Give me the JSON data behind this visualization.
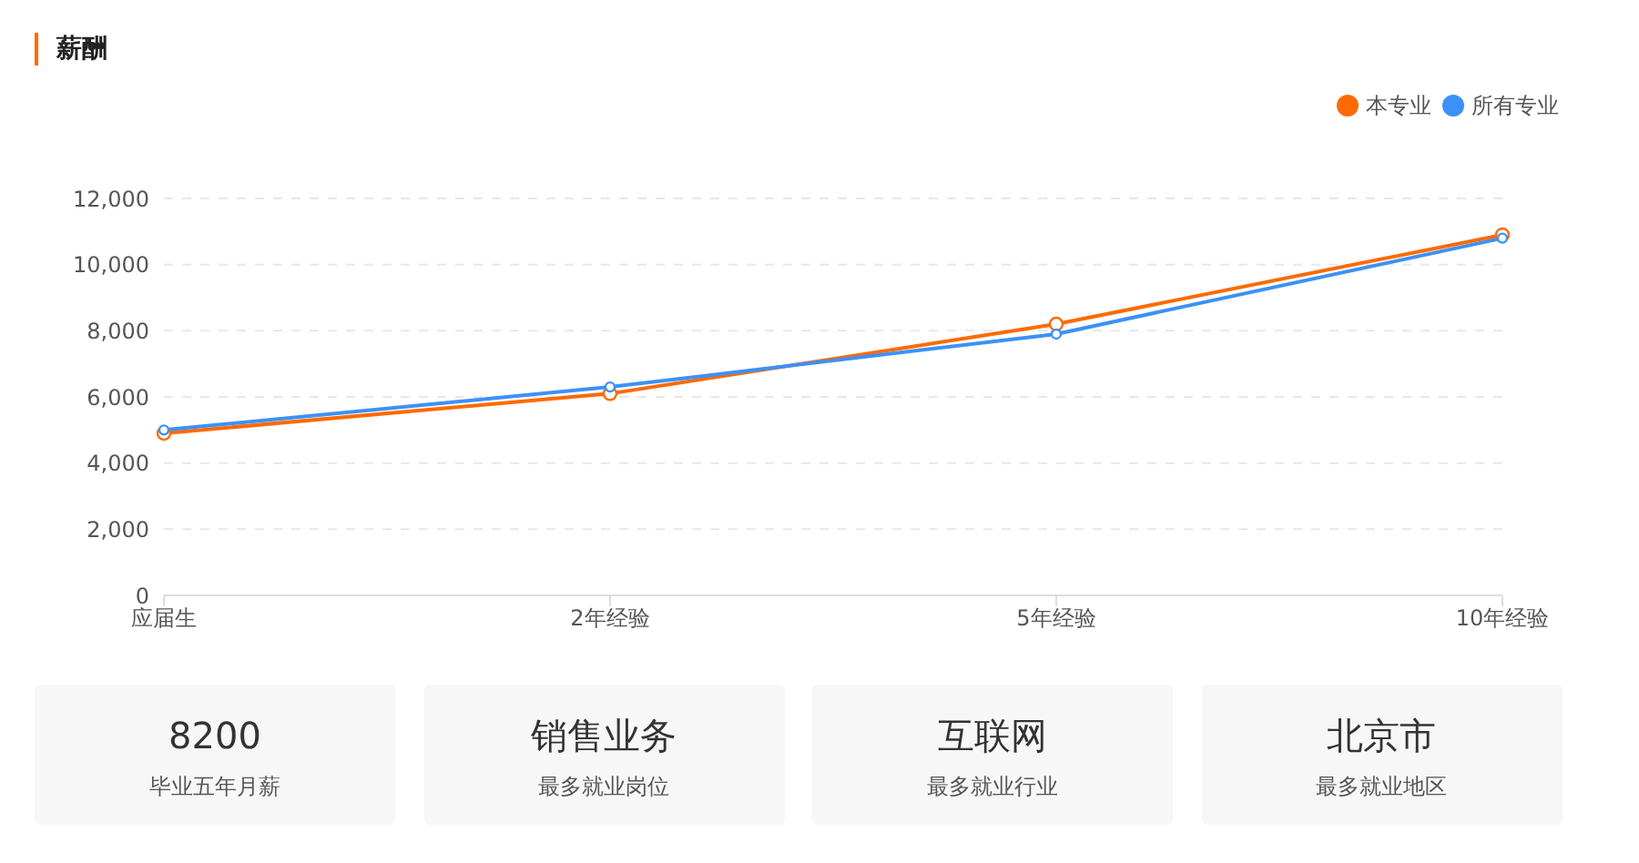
{
  "chart_data": [
    {
      "type": "line",
      "title": "薪酬",
      "categories": [
        "应届生",
        "2年经验",
        "5年经验",
        "10年经验"
      ],
      "series": [
        {
          "name": "本专业",
          "color": "#ff6a00",
          "values": [
            4900,
            6100,
            8200,
            10900
          ]
        },
        {
          "name": "所有专业",
          "color": "#3c91f7",
          "values": [
            5000,
            6300,
            7900,
            10800
          ]
        }
      ],
      "ylim": [
        0,
        12000
      ],
      "yticks": [
        0,
        {
          "value": 2000,
          "label": "2,000"
        },
        {
          "value": 4000,
          "label": "4,000"
        },
        {
          "value": 6000,
          "label": "6,000"
        },
        {
          "value": 8000,
          "label": "8,000"
        },
        {
          "value": 10000,
          "label": "10,000"
        },
        {
          "value": 12000,
          "label": "12,000"
        }
      ],
      "grid": "y",
      "legend": "top right",
      "marker": "circle",
      "line_style": "solid"
    },
    {
      "type": "other",
      "annotations": [
        "8200",
        "毕业五年月薪",
        "销售业务",
        "最多就业岗位",
        "互联网",
        "最多就业行业",
        "北京市",
        "最多就业地区"
      ]
    }
  ]
}
